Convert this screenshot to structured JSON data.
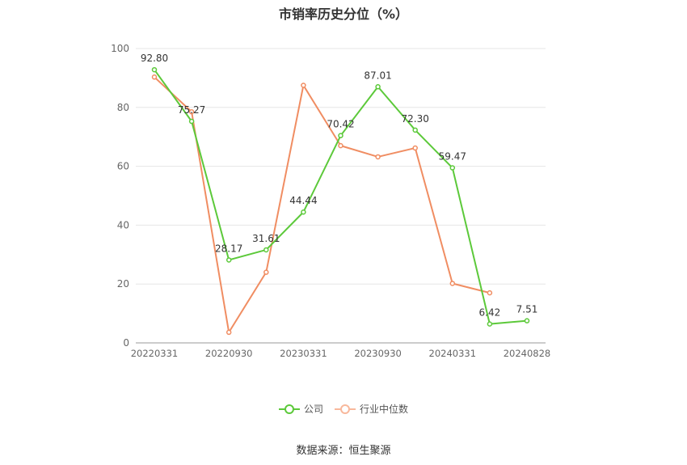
{
  "chart_data": {
    "type": "line",
    "title": "市销率历史分位（%）",
    "x": [
      "20220331",
      "20220630",
      "20220930",
      "20221230",
      "20230331",
      "20230630",
      "20230930",
      "20231229",
      "20240331",
      "20240630",
      "20240828"
    ],
    "x_tick_labels": [
      "20220331",
      "20220930",
      "20230331",
      "20230930",
      "20240331",
      "20240828"
    ],
    "ylim": [
      0,
      100
    ],
    "y_ticks": [
      0,
      20,
      40,
      60,
      80,
      100
    ],
    "grid": true,
    "legend_position": "bottom",
    "series": [
      {
        "name": "公司",
        "color": "#5cc93a",
        "values": [
          92.8,
          75.27,
          28.17,
          31.61,
          44.44,
          70.42,
          87.01,
          72.3,
          59.47,
          6.42,
          7.51
        ],
        "labels": [
          "92.80",
          "75.27",
          "28.17",
          "31.61",
          "44.44",
          "70.42",
          "87.01",
          "72.30",
          "59.47",
          "6.42",
          "7.51"
        ]
      },
      {
        "name": "行业中位数",
        "color": "#f08d62",
        "values": [
          90.3,
          78.5,
          3.6,
          24.0,
          87.5,
          67.0,
          63.2,
          66.2,
          20.2,
          17.0,
          null
        ]
      }
    ]
  },
  "source": "数据来源：恒生聚源"
}
